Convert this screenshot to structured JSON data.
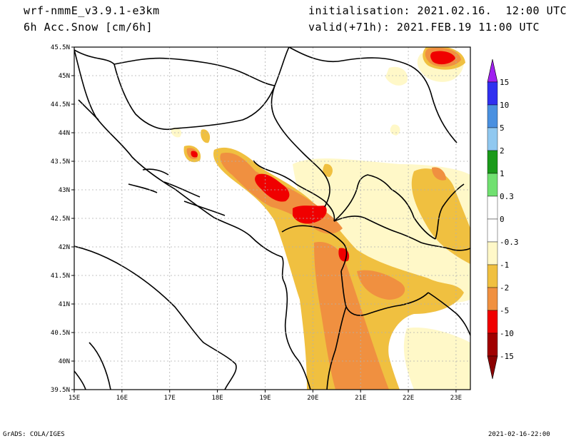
{
  "header": {
    "model": "wrf-nmmE_v3.9.1-e3km",
    "field": "6h Acc.Snow [cm/6h]",
    "init": "initialisation: 2021.02.16.  12:00 UTC",
    "valid": "valid(+71h): 2021.FEB.19 11:00 UTC"
  },
  "map": {
    "lon_range": [
      15,
      23.3
    ],
    "lat_range": [
      39.5,
      45.5
    ],
    "lon_ticks": [
      "15E",
      "16E",
      "17E",
      "18E",
      "19E",
      "20E",
      "21E",
      "22E",
      "23E"
    ],
    "lat_ticks": [
      "39.5N",
      "40N",
      "40.5N",
      "41N",
      "41.5N",
      "42N",
      "42.5N",
      "43N",
      "43.5N",
      "44N",
      "44.5N",
      "45N",
      "45.5N"
    ]
  },
  "colorbar": {
    "levels": [
      "15",
      "10",
      "5",
      "2",
      "1",
      "0.3",
      "0",
      "-0.3",
      "-1",
      "-2",
      "-5",
      "-10",
      "-15"
    ],
    "colors": {
      "top_triangle": "#a020f0",
      "bottom_triangle": "#8b0000",
      "bins": [
        "#3030f0",
        "#4a90e0",
        "#90c8f0",
        "#1a9a1a",
        "#70e070",
        "#ffffff",
        "#ffffff",
        "#fff8c8",
        "#f0c040",
        "#f09040",
        "#f00000",
        "#a00000"
      ]
    }
  },
  "footer": {
    "left": "GrADS: COLA/IGES",
    "right": "2021-02-16-22:00"
  }
}
